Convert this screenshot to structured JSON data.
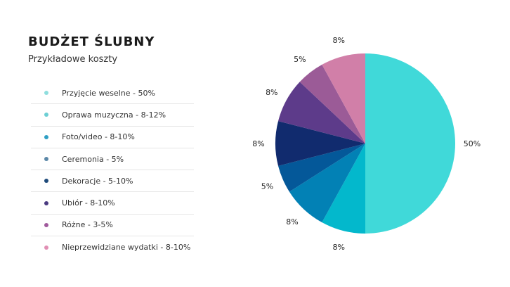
{
  "header": {
    "title": "BUDŻET ŚLUBNY",
    "subtitle": "Przykładowe koszty"
  },
  "chart_data": {
    "type": "pie",
    "legend": [
      {
        "label": "Przyjęcie weselne - 50%",
        "color": "#8fdede"
      },
      {
        "label": "Oprawa muzyczna - 8-12%",
        "color": "#6ccfd4"
      },
      {
        "label": "Foto/video - 8-10%",
        "color": "#2f9fc4"
      },
      {
        "label": "Ceremonia - 5%",
        "color": "#5b88a8"
      },
      {
        "label": "Dekoracje - 5-10%",
        "color": "#1e4a7a"
      },
      {
        "label": "Ubiór - 8-10%",
        "color": "#4a3a80"
      },
      {
        "label": "Różne - 3-5%",
        "color": "#a05a9c"
      },
      {
        "label": "Nieprzewidziane wydatki - 8-10%",
        "color": "#e18fb4"
      }
    ],
    "slices": [
      {
        "value": 50,
        "label": "50%",
        "color": "#40d9d9"
      },
      {
        "value": 8,
        "label": "8%",
        "color": "#03b8cc"
      },
      {
        "value": 8,
        "label": "8%",
        "color": "#0281b5"
      },
      {
        "value": 5,
        "label": "5%",
        "color": "#045899"
      },
      {
        "value": 8,
        "label": "8%",
        "color": "#112b6e"
      },
      {
        "value": 8,
        "label": "8%",
        "color": "#5d3b8a"
      },
      {
        "value": 5,
        "label": "5%",
        "color": "#9b5b97"
      },
      {
        "value": 8,
        "label": "8%",
        "color": "#d17fa8"
      }
    ]
  }
}
